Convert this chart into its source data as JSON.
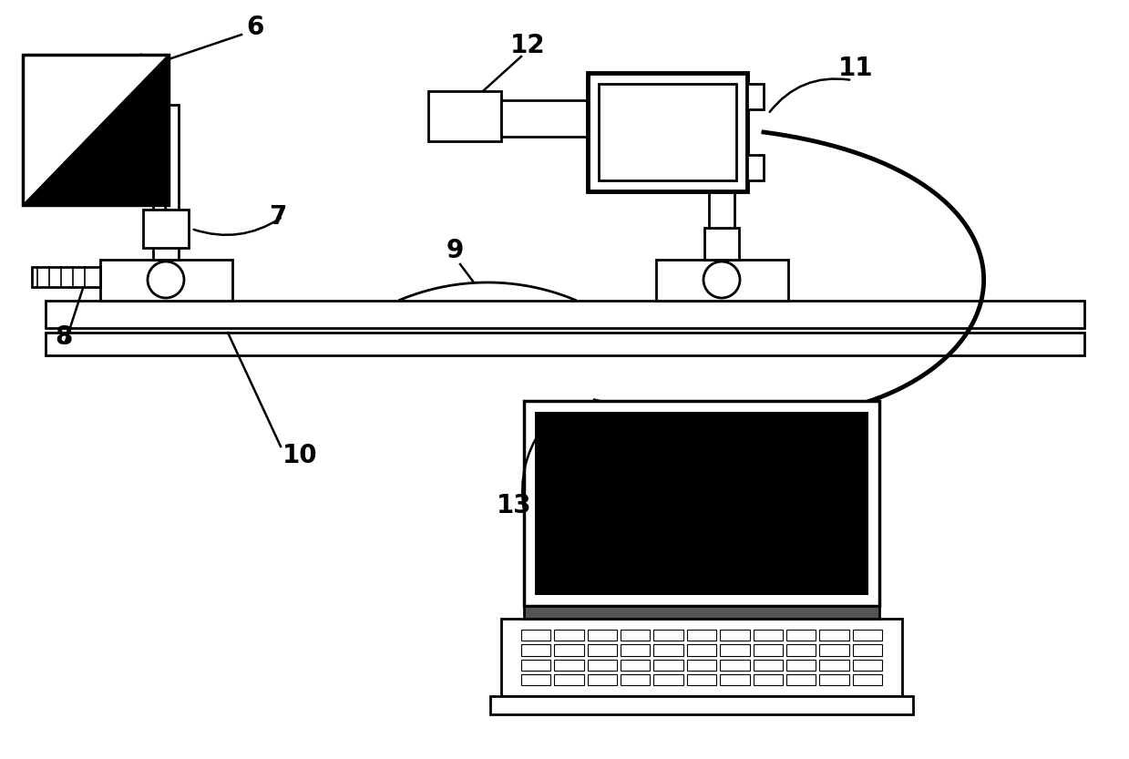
{
  "bg_color": "#ffffff",
  "lc": "#000000",
  "lw": 2.0,
  "tlw": 3.5,
  "fs": 20
}
